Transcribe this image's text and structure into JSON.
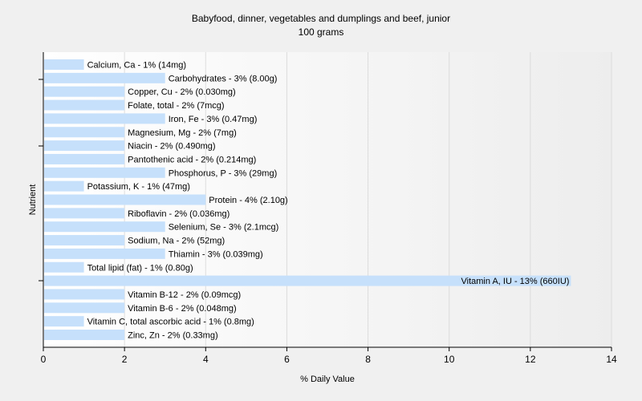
{
  "chart_data": {
    "type": "bar",
    "orientation": "horizontal",
    "title": "Babyfood, dinner, vegetables and dumplings and beef, junior",
    "subtitle": "100 grams",
    "xlabel": "% Daily Value",
    "ylabel": "Nutrient",
    "xlim": [
      0,
      14
    ],
    "xticks": [
      0,
      2,
      4,
      6,
      8,
      10,
      12,
      14
    ],
    "grid": true,
    "bar_color": "#c6e0fb",
    "categories": [
      "Calcium, Ca",
      "Carbohydrates",
      "Copper, Cu",
      "Folate, total",
      "Iron, Fe",
      "Magnesium, Mg",
      "Niacin",
      "Pantothenic acid",
      "Phosphorus, P",
      "Potassium, K",
      "Protein",
      "Riboflavin",
      "Selenium, Se",
      "Sodium, Na",
      "Thiamin",
      "Total lipid (fat)",
      "Vitamin A, IU",
      "Vitamin B-12",
      "Vitamin B-6",
      "Vitamin C, total ascorbic acid",
      "Zinc, Zn"
    ],
    "values": [
      1,
      3,
      2,
      2,
      3,
      2,
      2,
      2,
      3,
      1,
      4,
      2,
      3,
      2,
      3,
      1,
      13,
      2,
      2,
      1,
      2
    ],
    "labels": [
      "Calcium, Ca - 1% (14mg)",
      "Carbohydrates - 3% (8.00g)",
      "Copper, Cu - 2% (0.030mg)",
      "Folate, total - 2% (7mcg)",
      "Iron, Fe - 3% (0.47mg)",
      "Magnesium, Mg - 2% (7mg)",
      "Niacin - 2% (0.490mg)",
      "Pantothenic acid - 2% (0.214mg)",
      "Phosphorus, P - 3% (29mg)",
      "Potassium, K - 1% (47mg)",
      "Protein - 4% (2.10g)",
      "Riboflavin - 2% (0.036mg)",
      "Selenium, Se - 3% (2.1mcg)",
      "Sodium, Na - 2% (52mg)",
      "Thiamin - 3% (0.039mg)",
      "Total lipid (fat) - 1% (0.80g)",
      "Vitamin A, IU - 13% (660IU)",
      "Vitamin B-12 - 2% (0.09mcg)",
      "Vitamin B-6 - 2% (0.048mg)",
      "Vitamin C, total ascorbic acid - 1% (0.8mg)",
      "Zinc, Zn - 2% (0.33mg)"
    ]
  }
}
